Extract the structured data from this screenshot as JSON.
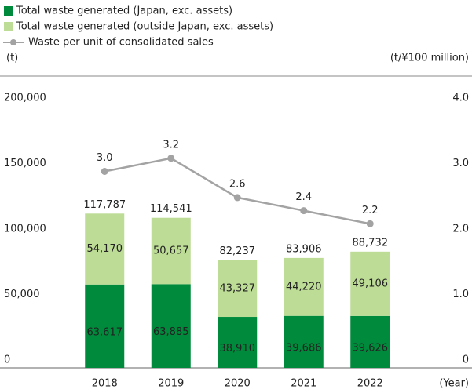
{
  "chart_data": {
    "type": "stacked-bar-line",
    "categories": [
      "2018",
      "2019",
      "2020",
      "2021",
      "2022"
    ],
    "series": [
      {
        "name": "Total waste generated (Japan, exc. assets)",
        "color": "#008a3c",
        "values": [
          63617,
          63885,
          38910,
          39686,
          39626
        ],
        "value_labels": [
          "63,617",
          "63,885",
          "38,910",
          "39,686",
          "39,626"
        ]
      },
      {
        "name": "Total waste generated (outside Japan, exc. assets)",
        "color": "#bddc96",
        "values": [
          54170,
          50657,
          43327,
          44220,
          49106
        ],
        "value_labels": [
          "54,170",
          "50,657",
          "43,327",
          "44,220",
          "49,106"
        ]
      },
      {
        "name": "Waste per unit of consolidated sales",
        "color": "#a3a3a3",
        "axis": "y2",
        "values": [
          3.0,
          3.2,
          2.6,
          2.4,
          2.2
        ],
        "value_labels": [
          "3.0",
          "3.2",
          "2.6",
          "2.4",
          "2.2"
        ]
      }
    ],
    "totals": [
      "117,787",
      "114,541",
      "82,237",
      "83,906",
      "88,732"
    ],
    "y_label": "(t)",
    "y2_label": "(t/¥100 million)",
    "x_label": "(Year)",
    "ylim": [
      0,
      200000
    ],
    "yticks": [
      0,
      {
        "value": 50000,
        "label": "50,000"
      },
      {
        "value": 100000,
        "label": "100,000"
      },
      {
        "value": 150000,
        "label": "150,000"
      },
      {
        "value": 200000,
        "label": "200,000"
      }
    ],
    "y2lim": [
      0,
      4
    ],
    "y2ticks": [
      0,
      {
        "value": 1,
        "label": "1.0"
      },
      {
        "value": 2,
        "label": "2.0"
      },
      {
        "value": 3,
        "label": "3.0"
      },
      {
        "value": 4,
        "label": "4.0"
      }
    ]
  }
}
